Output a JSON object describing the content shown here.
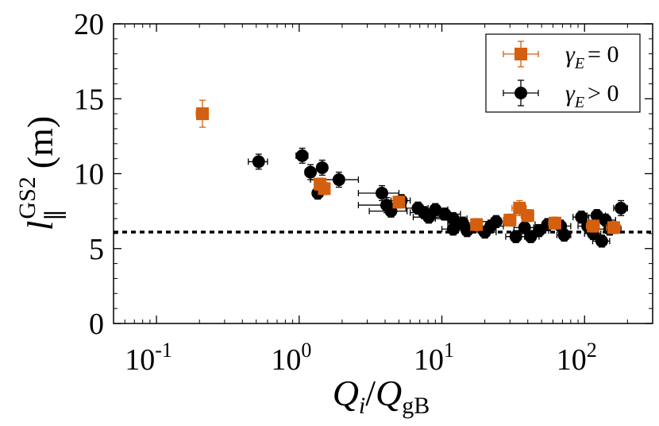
{
  "chart_data": {
    "type": "scatter",
    "xscale": "log",
    "xlim": [
      0.05,
      300
    ],
    "ylim": [
      0,
      20
    ],
    "xlabel": "Q_i/Q_gB",
    "ylabel": "l_∥^GS2 (m)",
    "ylabel_text": {
      "base": "l",
      "sub": "∥",
      "sup": "GS2",
      "unit": "(m)"
    },
    "xlabel_text": {
      "q1": "Q",
      "sub1": "i",
      "slash": "/",
      "q2": "Q",
      "sub2": "gB"
    },
    "x_ticks": [
      {
        "value": 0.1,
        "base": "10",
        "exp": "-1"
      },
      {
        "value": 1,
        "base": "10",
        "exp": "0"
      },
      {
        "value": 10,
        "base": "10",
        "exp": "1"
      },
      {
        "value": 100,
        "base": "10",
        "exp": "2"
      }
    ],
    "y_ticks": [
      0,
      5,
      10,
      15,
      20
    ],
    "reference_line": {
      "y": 6.1,
      "style": "dotted"
    },
    "legend": {
      "position": "top-right"
    },
    "colors": {
      "orange": "#d45f0f",
      "black": "#000000"
    },
    "series": [
      {
        "name": "γE = 0",
        "legend_sym": "γ",
        "legend_sub": "E",
        "legend_rel": "= 0",
        "marker": "square",
        "color": "#d45f0f",
        "points": [
          {
            "x": 0.21,
            "y": 14.0,
            "xerr": 0.02,
            "yerr": 0.9
          },
          {
            "x": 1.4,
            "y": 9.3,
            "xerr": 0.08,
            "yerr": 0.4
          },
          {
            "x": 1.5,
            "y": 9.0,
            "xerr": 0.1,
            "yerr": 0.4
          },
          {
            "x": 5.0,
            "y": 8.1,
            "xerr": 0.4,
            "yerr": 0.4
          },
          {
            "x": 17.5,
            "y": 6.6,
            "xerr": 1.5,
            "yerr": 0.4
          },
          {
            "x": 30,
            "y": 6.9,
            "xerr": 3,
            "yerr": 0.4
          },
          {
            "x": 35,
            "y": 7.7,
            "xerr": 4,
            "yerr": 0.5
          },
          {
            "x": 40,
            "y": 7.2,
            "xerr": 4,
            "yerr": 0.4
          },
          {
            "x": 62,
            "y": 6.7,
            "xerr": 6,
            "yerr": 0.4
          },
          {
            "x": 115,
            "y": 6.5,
            "xerr": 12,
            "yerr": 0.4
          },
          {
            "x": 160,
            "y": 6.4,
            "xerr": 18,
            "yerr": 0.4
          }
        ]
      },
      {
        "name": "γE > 0",
        "legend_sym": "γ",
        "legend_sub": "E",
        "legend_rel": "> 0",
        "marker": "circle",
        "color": "#000000",
        "points": [
          {
            "x": 0.52,
            "y": 10.8,
            "xerr": 0.08,
            "yerr": 0.5
          },
          {
            "x": 1.05,
            "y": 11.2,
            "xerr": 0.1,
            "yerr": 0.5
          },
          {
            "x": 1.2,
            "y": 10.1,
            "xerr": 0.1,
            "yerr": 0.5
          },
          {
            "x": 1.45,
            "y": 10.4,
            "xerr": 0.1,
            "yerr": 0.5
          },
          {
            "x": 1.35,
            "y": 8.7,
            "xerr": 0.1,
            "yerr": 0.4
          },
          {
            "x": 1.9,
            "y": 9.6,
            "xerr": 0.7,
            "yerr": 0.5
          },
          {
            "x": 3.8,
            "y": 8.7,
            "xerr": 1.2,
            "yerr": 0.5
          },
          {
            "x": 4.1,
            "y": 7.9,
            "xerr": 1.5,
            "yerr": 0.5
          },
          {
            "x": 4.4,
            "y": 7.5,
            "xerr": 1.3,
            "yerr": 0.4
          },
          {
            "x": 5.2,
            "y": 8.2,
            "xerr": 0.8,
            "yerr": 0.4
          },
          {
            "x": 6.8,
            "y": 7.7,
            "xerr": 1.2,
            "yerr": 0.4
          },
          {
            "x": 7.5,
            "y": 7.4,
            "xerr": 1.5,
            "yerr": 0.4
          },
          {
            "x": 8.1,
            "y": 7.1,
            "xerr": 1.8,
            "yerr": 0.4
          },
          {
            "x": 9.0,
            "y": 7.6,
            "xerr": 2.0,
            "yerr": 0.4
          },
          {
            "x": 10.5,
            "y": 7.3,
            "xerr": 3.0,
            "yerr": 0.4
          },
          {
            "x": 12.0,
            "y": 7.0,
            "xerr": 3.0,
            "yerr": 0.4
          },
          {
            "x": 12.0,
            "y": 6.3,
            "xerr": 2.0,
            "yerr": 0.4
          },
          {
            "x": 14.0,
            "y": 6.7,
            "xerr": 3.0,
            "yerr": 0.4
          },
          {
            "x": 15.0,
            "y": 6.2,
            "xerr": 3.0,
            "yerr": 0.4
          },
          {
            "x": 20.0,
            "y": 6.1,
            "xerr": 4.0,
            "yerr": 0.4
          },
          {
            "x": 22.0,
            "y": 6.5,
            "xerr": 5.0,
            "yerr": 0.4
          },
          {
            "x": 24.0,
            "y": 6.8,
            "xerr": 5.0,
            "yerr": 0.4
          },
          {
            "x": 33.0,
            "y": 5.8,
            "xerr": 5.0,
            "yerr": 0.4
          },
          {
            "x": 38.0,
            "y": 6.4,
            "xerr": 6.0,
            "yerr": 0.4
          },
          {
            "x": 42.0,
            "y": 5.8,
            "xerr": 6.0,
            "yerr": 0.4
          },
          {
            "x": 48.0,
            "y": 6.2,
            "xerr": 8.0,
            "yerr": 0.4
          },
          {
            "x": 55.0,
            "y": 6.6,
            "xerr": 10.0,
            "yerr": 0.4
          },
          {
            "x": 68.0,
            "y": 6.5,
            "xerr": 12.0,
            "yerr": 0.4
          },
          {
            "x": 72.0,
            "y": 5.9,
            "xerr": 8.0,
            "yerr": 0.4
          },
          {
            "x": 95.0,
            "y": 7.1,
            "xerr": 12.0,
            "yerr": 0.4
          },
          {
            "x": 105.0,
            "y": 6.5,
            "xerr": 15.0,
            "yerr": 0.4
          },
          {
            "x": 115.0,
            "y": 6.0,
            "xerr": 15.0,
            "yerr": 0.4
          },
          {
            "x": 122.0,
            "y": 7.2,
            "xerr": 18.0,
            "yerr": 0.4
          },
          {
            "x": 132.0,
            "y": 5.5,
            "xerr": 18.0,
            "yerr": 0.4
          },
          {
            "x": 140.0,
            "y": 6.9,
            "xerr": 25.0,
            "yerr": 0.4
          },
          {
            "x": 150.0,
            "y": 6.3,
            "xerr": 30.0,
            "yerr": 0.4
          },
          {
            "x": 180.0,
            "y": 7.7,
            "xerr": 20.0,
            "yerr": 0.5
          }
        ]
      }
    ]
  }
}
